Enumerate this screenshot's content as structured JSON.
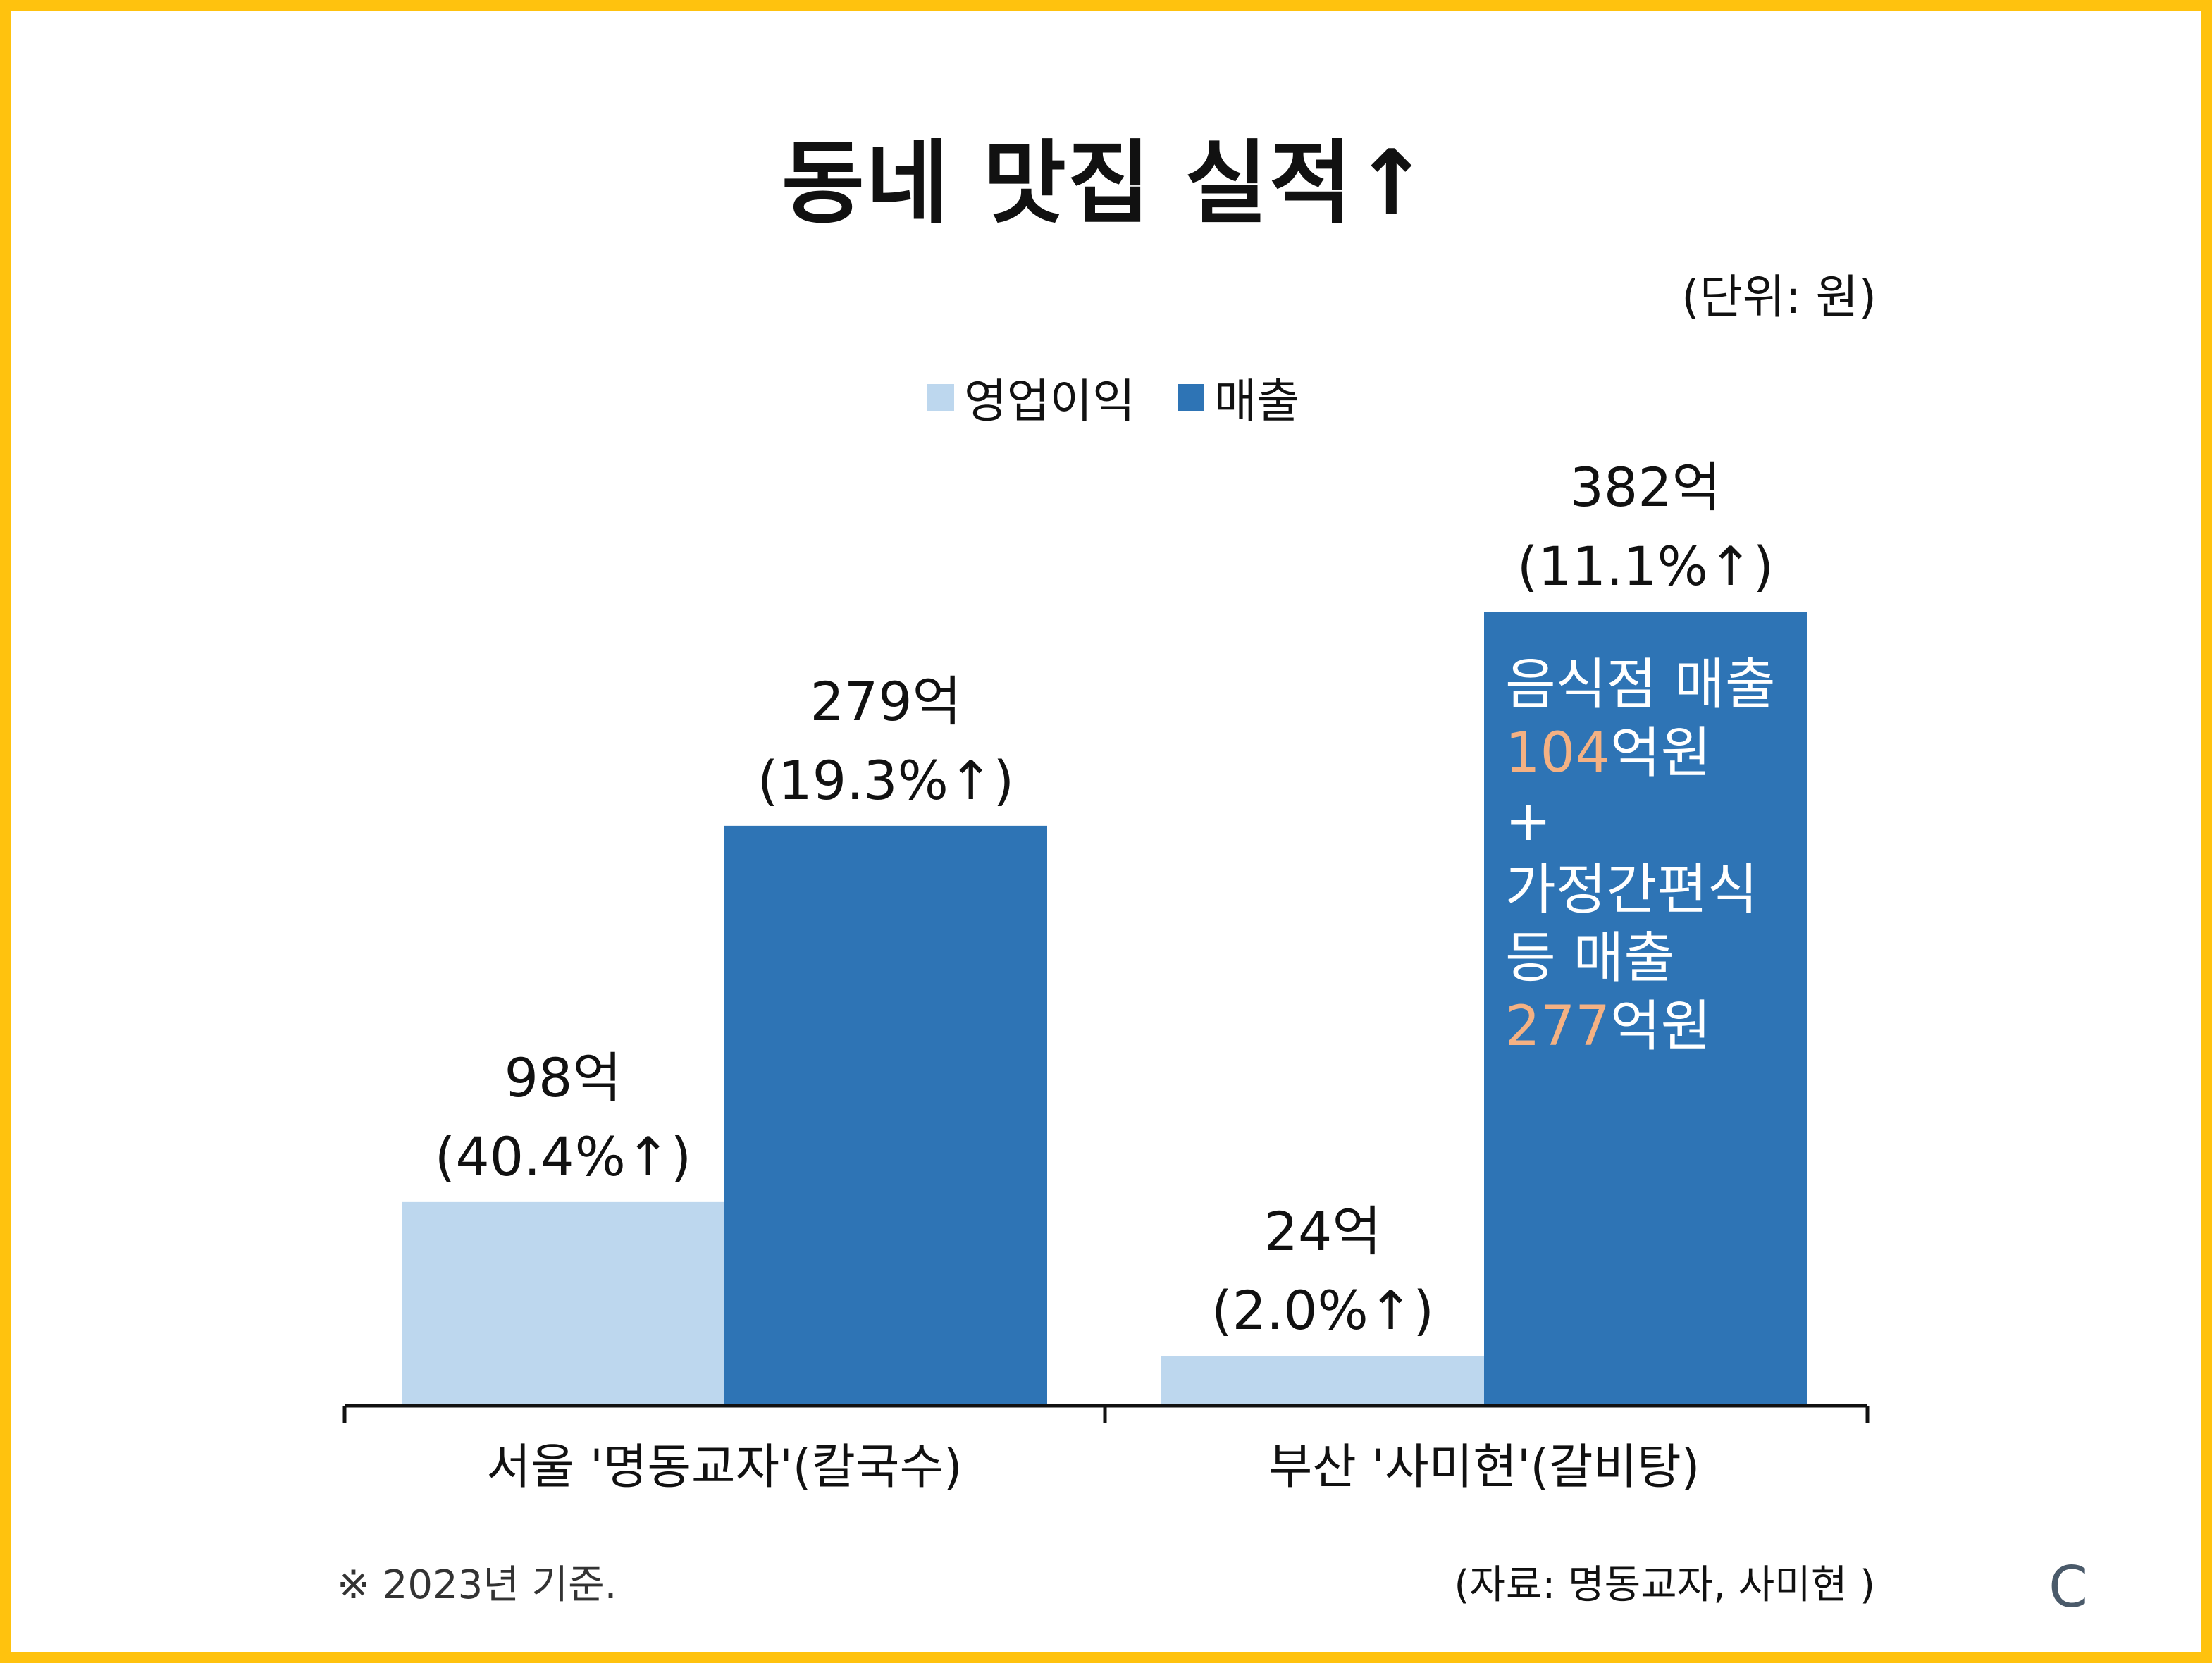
{
  "title": "동네 맛집 실적↑",
  "unit": "(단위: 원)",
  "legend": [
    {
      "label": "영업이익",
      "color": "#BDD7EE"
    },
    {
      "label": "매출",
      "color": "#2E74B5"
    }
  ],
  "footnote": "※ 2023년 기준.",
  "source": "(자료: 명동교자, 사미현 )",
  "logo": "C",
  "chart_data": {
    "type": "bar",
    "title": "동네 맛집 실적↑",
    "categories": [
      "서울 '명동교자'(칼국수)",
      "부산 '사미현'(갈비탕)"
    ],
    "series": [
      {
        "name": "영업이익",
        "color": "#BDD7EE",
        "values": [
          98,
          24
        ],
        "labels": [
          "98억",
          "24억"
        ],
        "growth": [
          "(40.4%↑)",
          "(2.0%↑)"
        ]
      },
      {
        "name": "매출",
        "color": "#2E74B5",
        "values": [
          279,
          382
        ],
        "labels": [
          "279억",
          "382억"
        ],
        "growth": [
          "(19.3%↑)",
          "(11.1%↑)"
        ]
      }
    ],
    "ylim": [
      0,
      382
    ],
    "grid": false,
    "legend_position": "top",
    "annotation": {
      "color_text": "#FFFFFF",
      "color_highlight": "#F4B183",
      "lines": [
        {
          "parts": [
            {
              "text": "음식점 매출",
              "highlight": false
            }
          ]
        },
        {
          "parts": [
            {
              "text": "104",
              "highlight": true
            },
            {
              "text": "억원",
              "highlight": false
            }
          ]
        },
        {
          "parts": [
            {
              "text": "+",
              "highlight": false
            }
          ]
        },
        {
          "parts": [
            {
              "text": "가정간편식",
              "highlight": false
            }
          ]
        },
        {
          "parts": [
            {
              "text": "등 매출",
              "highlight": false
            }
          ]
        },
        {
          "parts": [
            {
              "text": "277",
              "highlight": true
            },
            {
              "text": "억원",
              "highlight": false
            }
          ]
        }
      ]
    }
  }
}
